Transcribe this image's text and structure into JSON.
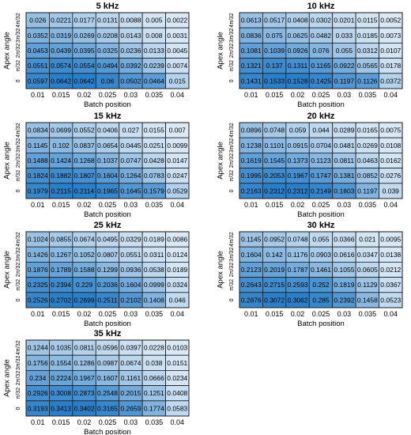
{
  "chart_data": [
    {
      "type": "heatmap",
      "title": "5 kHz",
      "xlabel": "Batch position",
      "ylabel": "Apex angle",
      "x_ticks": [
        "0.01",
        "0.015",
        "0.02",
        "0.025",
        "0.03",
        "0.035",
        "0.04"
      ],
      "y_ticks": [
        "4π/32",
        "3π/32",
        "2π/32",
        "π/32",
        "0"
      ],
      "values": [
        [
          0.026,
          0.0221,
          0.0177,
          0.0131,
          0.0088,
          0.005,
          0.0022
        ],
        [
          0.0352,
          0.0319,
          0.0269,
          0.0208,
          0.0143,
          0.008,
          0.0031
        ],
        [
          0.0453,
          0.0439,
          0.0395,
          0.0325,
          0.0236,
          0.0133,
          0.0045
        ],
        [
          0.0551,
          0.0574,
          0.0554,
          0.0494,
          0.0392,
          0.0239,
          0.0074
        ],
        [
          0.0597,
          0.0642,
          0.0642,
          0.06,
          0.0502,
          0.0464,
          0.015
        ]
      ]
    },
    {
      "type": "heatmap",
      "title": "10 kHz",
      "xlabel": "Batch position",
      "ylabel": "Apex angle",
      "x_ticks": [
        "0.01",
        "0.015",
        "0.02",
        "0.025",
        "0.03",
        "0.035",
        "0.04"
      ],
      "y_ticks": [
        "4π/32",
        "3π/32",
        "2π/32",
        "π/32",
        "0"
      ],
      "values": [
        [
          0.0613,
          0.0517,
          0.0408,
          0.0302,
          0.0201,
          0.0115,
          0.0052
        ],
        [
          0.0836,
          0.075,
          0.0625,
          0.0482,
          0.033,
          0.0185,
          0.0073
        ],
        [
          0.1081,
          0.1039,
          0.0926,
          0.076,
          0.055,
          0.0312,
          0.0107
        ],
        [
          0.1321,
          0.137,
          0.1311,
          0.1165,
          0.0922,
          0.0565,
          0.0178
        ],
        [
          0.1431,
          0.1533,
          0.1528,
          0.1425,
          0.1197,
          0.1126,
          0.0372
        ]
      ]
    },
    {
      "type": "heatmap",
      "title": "15 kHz",
      "xlabel": "Batch position",
      "ylabel": "Apex angle",
      "x_ticks": [
        "0.01",
        "0.015",
        "0.02",
        "0.025",
        "0.03",
        "0.035",
        "0.04"
      ],
      "y_ticks": [
        "4π/32",
        "3π/32",
        "2π/32",
        "π/32",
        "0"
      ],
      "values": [
        [
          0.0834,
          0.0699,
          0.0552,
          0.0406,
          0.027,
          0.0155,
          0.007
        ],
        [
          0.1145,
          0.102,
          0.0837,
          0.0654,
          0.0445,
          0.0251,
          0.0099
        ],
        [
          0.1488,
          0.1424,
          0.1268,
          0.1037,
          0.0747,
          0.0428,
          0.0147
        ],
        [
          0.1824,
          0.1882,
          0.1807,
          0.1604,
          0.1264,
          0.0783,
          0.0247
        ],
        [
          0.1979,
          0.2115,
          0.2114,
          0.1965,
          0.1645,
          0.1579,
          0.0529
        ]
      ]
    },
    {
      "type": "heatmap",
      "title": "20 kHz",
      "xlabel": "Batch position",
      "ylabel": "Apex angle",
      "x_ticks": [
        "0.01",
        "0.015",
        "0.02",
        "0.025",
        "0.03",
        "0.035",
        "0.04"
      ],
      "y_ticks": [
        "4π/32",
        "3π/32",
        "2π/32",
        "π/32",
        "0"
      ],
      "values": [
        [
          0.0896,
          0.0748,
          0.059,
          0.044,
          0.0289,
          0.0165,
          0.0075
        ],
        [
          0.1238,
          0.1101,
          0.0915,
          0.0704,
          0.0481,
          0.0269,
          0.0108
        ],
        [
          0.1619,
          0.1545,
          0.1373,
          0.1123,
          0.0811,
          0.0463,
          0.0162
        ],
        [
          0.1995,
          0.2053,
          0.1967,
          0.1747,
          0.1381,
          0.0852,
          0.0276
        ],
        [
          0.2163,
          0.2312,
          0.2312,
          0.2149,
          0.1803,
          0.1197,
          0.039
        ]
      ]
    },
    {
      "type": "heatmap",
      "title": "25 kHz",
      "xlabel": "Batch position",
      "ylabel": "Apex angle",
      "x_ticks": [
        "0.01",
        "0.015",
        "0.02",
        "0.025",
        "0.03",
        "0.035",
        "0.04"
      ],
      "y_ticks": [
        "4π/32",
        "3π/32",
        "2π/32",
        "π/32",
        "0"
      ],
      "values": [
        [
          0.1024,
          0.0855,
          0.0674,
          0.0495,
          0.0329,
          0.0189,
          0.0086
        ],
        [
          0.1426,
          0.1267,
          0.1052,
          0.0807,
          0.0551,
          0.0311,
          0.0124
        ],
        [
          0.1876,
          0.1789,
          0.1588,
          0.1299,
          0.0936,
          0.0538,
          0.0189
        ],
        [
          0.2325,
          0.2394,
          0.229,
          0.2036,
          0.1604,
          0.0999,
          0.0324
        ],
        [
          0.2526,
          0.2702,
          0.2699,
          0.2511,
          0.2102,
          0.1408,
          0.046
        ]
      ]
    },
    {
      "type": "heatmap",
      "title": "30 kHz",
      "xlabel": "Batch position",
      "ylabel": "Apex angle",
      "x_ticks": [
        "0.01",
        "0.015",
        "0.02",
        "0.025",
        "0.03",
        "0.035",
        "0.04"
      ],
      "y_ticks": [
        "4π/32",
        "3π/32",
        "2π/32",
        "π/32",
        "0"
      ],
      "values": [
        [
          0.1145,
          0.0952,
          0.0748,
          0.055,
          0.0366,
          0.021,
          0.0095
        ],
        [
          0.1604,
          0.142,
          0.1176,
          0.0903,
          0.0616,
          0.0347,
          0.0138
        ],
        [
          0.2123,
          0.2019,
          0.1787,
          0.1461,
          0.1055,
          0.0605,
          0.0212
        ],
        [
          0.2643,
          0.2715,
          0.2593,
          0.252,
          0.1819,
          0.1129,
          0.0367
        ],
        [
          0.2876,
          0.3072,
          0.3062,
          0.285,
          0.2392,
          0.1458,
          0.0523
        ]
      ]
    },
    {
      "type": "heatmap",
      "title": "35 kHz",
      "xlabel": "Batch position",
      "ylabel": "Apex angle",
      "x_ticks": [
        "0.01",
        "0.015",
        "0.02",
        "0.025",
        "0.03",
        "0.035",
        "0.04"
      ],
      "y_ticks": [
        "4π/32",
        "3π/32",
        "2π/32",
        "π/32",
        "0"
      ],
      "values": [
        [
          0.1244,
          0.1035,
          0.0811,
          0.0596,
          0.0397,
          0.0228,
          0.0103
        ],
        [
          0.1756,
          0.1554,
          0.1286,
          0.0987,
          0.0674,
          0.038,
          0.0151
        ],
        [
          0.234,
          0.2224,
          0.1967,
          0.1607,
          0.1161,
          0.0666,
          0.0234
        ],
        [
          0.2926,
          0.3008,
          0.2873,
          0.2548,
          0.2015,
          0.1251,
          0.0408
        ],
        [
          0.3193,
          0.3413,
          0.3402,
          0.3165,
          0.2659,
          0.1774,
          0.0583
        ]
      ]
    }
  ],
  "colors": {
    "low": "#dbe9f6",
    "high": "#2a7fc9",
    "grid": "#1a1a1a",
    "text": "#000000"
  }
}
